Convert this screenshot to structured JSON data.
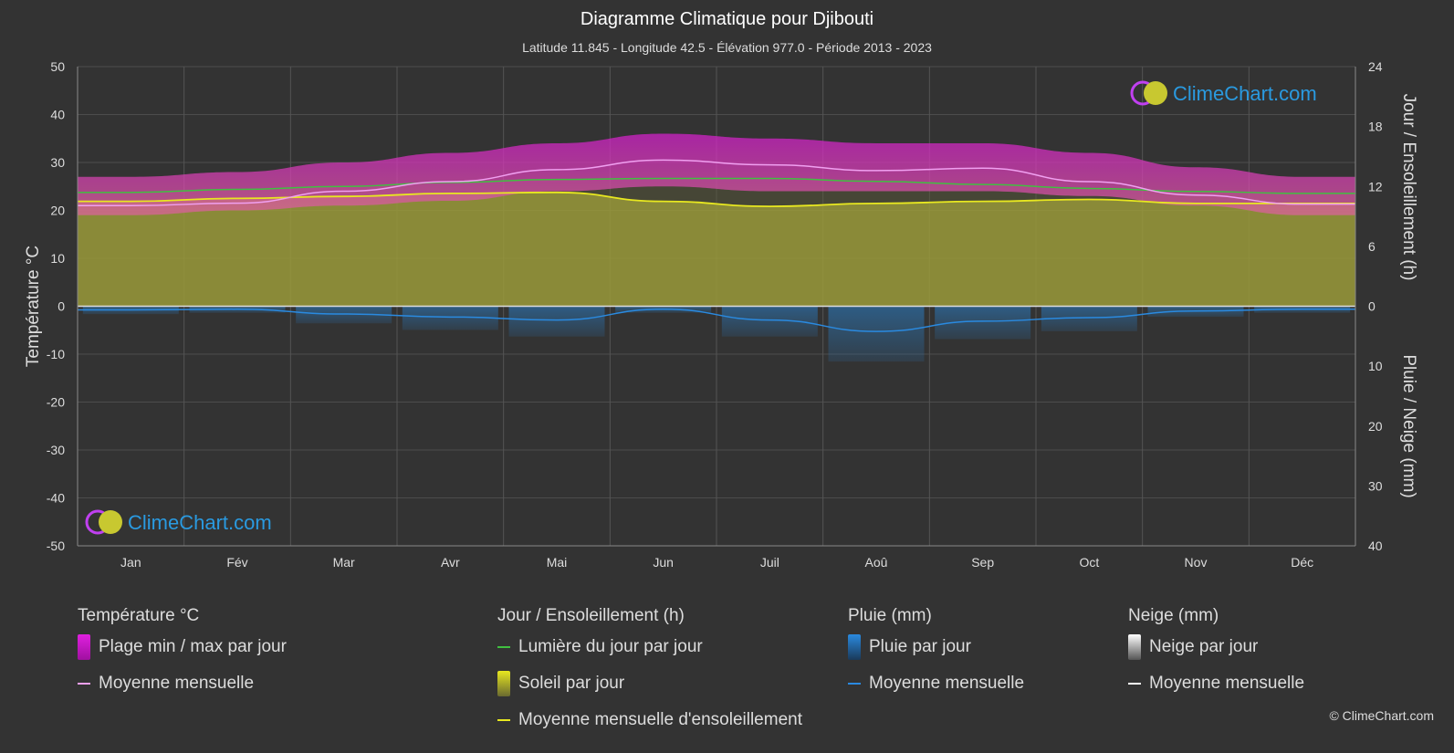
{
  "chart_data": {
    "type": "area",
    "title": "Diagramme Climatique pour Djibouti",
    "subtitle": "Latitude 11.845 - Longitude 42.5 - Élévation 977.0 - Période 2013 - 2023",
    "categories": [
      "Jan",
      "Fév",
      "Mar",
      "Avr",
      "Mai",
      "Jun",
      "Juil",
      "Aoû",
      "Sep",
      "Oct",
      "Nov",
      "Déc"
    ],
    "left_axis": {
      "label": "Température °C",
      "min": -50,
      "max": 50,
      "ticks": [
        50,
        40,
        30,
        20,
        10,
        0,
        -10,
        -20,
        -30,
        -40,
        -50
      ]
    },
    "right_axis_top": {
      "label": "Jour / Ensoleillement (h)",
      "min": 0,
      "max": 24,
      "ticks": [
        24,
        18,
        12,
        6,
        0
      ]
    },
    "right_axis_bottom": {
      "label": "Pluie / Neige (mm)",
      "min": 0,
      "max": 40,
      "ticks": [
        0,
        10,
        20,
        30,
        40
      ]
    },
    "series": [
      {
        "name": "Plage min / max par jour",
        "unit": "°C",
        "min": [
          19,
          20,
          21,
          22,
          24,
          25,
          24,
          24,
          24,
          23,
          21,
          19
        ],
        "max": [
          27,
          28,
          30,
          32,
          34,
          36,
          35,
          34,
          34,
          32,
          29,
          27
        ]
      },
      {
        "name": "Moyenne mensuelle",
        "unit": "°C",
        "values": [
          21.0,
          21.5,
          24.0,
          26.0,
          28.5,
          30.5,
          29.5,
          28.3,
          28.8,
          26.0,
          23.2,
          21.3
        ]
      },
      {
        "name": "Lumière du jour par jour",
        "unit": "h",
        "values": [
          11.4,
          11.7,
          12.0,
          12.4,
          12.7,
          12.8,
          12.8,
          12.5,
          12.2,
          11.8,
          11.5,
          11.3
        ]
      },
      {
        "name": "Soleil par jour",
        "unit": "h",
        "values": [
          10.5,
          10.8,
          11.0,
          11.3,
          11.4,
          10.5,
          10.0,
          10.3,
          10.5,
          10.7,
          10.3,
          10.3
        ]
      },
      {
        "name": "Moyenne mensuelle d'ensoleillement",
        "unit": "h",
        "values": [
          10.5,
          10.8,
          11.0,
          11.3,
          11.4,
          10.5,
          10.0,
          10.3,
          10.5,
          10.7,
          10.3,
          10.3
        ]
      },
      {
        "name": "Pluie par jour",
        "unit": "mm",
        "values": [
          0.6,
          0.5,
          1.3,
          1.8,
          2.3,
          0.5,
          2.3,
          4.2,
          2.5,
          1.9,
          0.8,
          0.5
        ]
      },
      {
        "name": "Moyenne mensuelle",
        "unit": "mm",
        "values": [
          0.6,
          0.5,
          1.3,
          1.8,
          2.3,
          0.5,
          2.3,
          4.2,
          2.5,
          1.9,
          0.8,
          0.5
        ]
      }
    ],
    "grid": true,
    "colors": {
      "temp_band": "#d020c8",
      "temp_mean": "#f0a0f0",
      "daylight": "#40c040",
      "sunshine_fill": "#a8a838",
      "sunshine_mean": "#e8e820",
      "rain": "#2a7fc8",
      "rain_mean": "#2a8ae0"
    }
  },
  "logo_text": "ClimeChart.com",
  "copyright": "© ClimeChart.com",
  "legend": {
    "temperature": {
      "title": "Température °C",
      "items": [
        "Plage min / max par jour",
        "Moyenne mensuelle"
      ]
    },
    "sun": {
      "title": "Jour / Ensoleillement (h)",
      "items": [
        "Lumière du jour par jour",
        "Soleil par jour",
        "Moyenne mensuelle d'ensoleillement"
      ]
    },
    "rain": {
      "title": "Pluie (mm)",
      "items": [
        "Pluie par jour",
        "Moyenne mensuelle"
      ]
    },
    "snow": {
      "title": "Neige (mm)",
      "items": [
        "Neige par jour",
        "Moyenne mensuelle"
      ]
    }
  }
}
